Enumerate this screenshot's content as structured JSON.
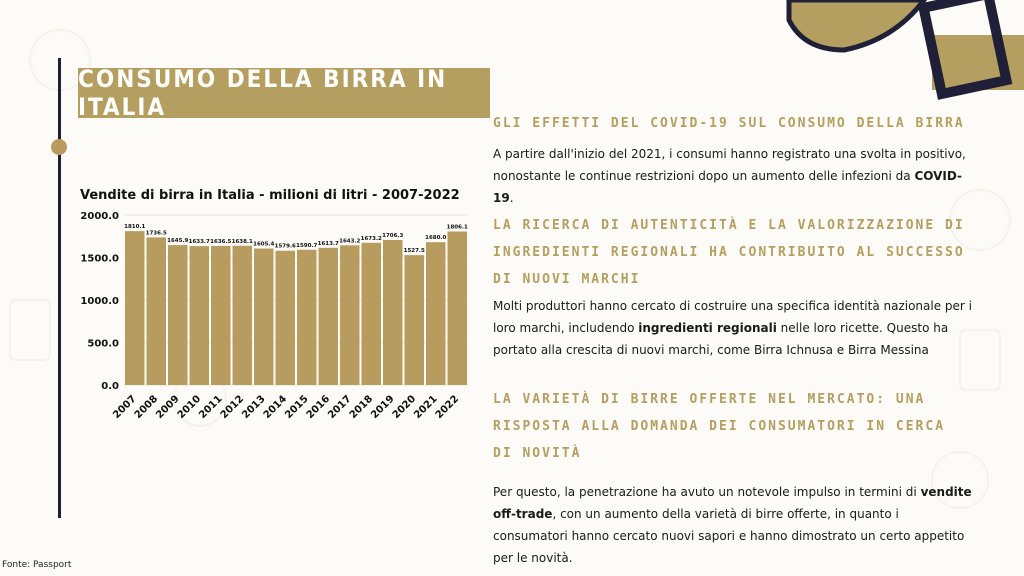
{
  "page": {
    "title": "CONSUMO DELLA BIRRA IN ITALIA",
    "source": "Fonte: Passport"
  },
  "colors": {
    "gold": "#b49f61",
    "navy": "#1f1f38",
    "bar": "#b89b5e"
  },
  "sections": [
    {
      "heading": "GLI EFFETTI DEL COVID-19 SUL CONSUMO DELLA BIRRA",
      "body": [
        {
          "text": "A partire dall'inizio del 2021, i consumi hanno registrato una svolta in positivo, nonostante le continue restrizioni dopo un aumento delle infezioni da "
        },
        {
          "text": "COVID-19",
          "bold": true
        },
        {
          "text": "."
        }
      ]
    },
    {
      "heading": "LA RICERCA DI AUTENTICITÀ E LA VALORIZZAZIONE DI INGREDIENTI REGIONALI HA CONTRIBUITO AL SUCCESSO DI NUOVI MARCHI",
      "body": [
        {
          "text": "Molti produttori hanno cercato di costruire una specifica identità nazionale per i loro marchi, includendo "
        },
        {
          "text": "ingredienti regionali",
          "bold": true
        },
        {
          "text": " nelle loro ricette. Questo ha portato alla crescita di nuovi marchi, come Birra Ichnusa e Birra Messina"
        }
      ]
    },
    {
      "heading": "LA VARIETÀ DI BIRRE OFFERTE NEL MERCATO: UNA RISPOSTA ALLA DOMANDA DEI CONSUMATORI IN CERCA DI NOVITÀ",
      "body": [
        {
          "text": "Per questo, la penetrazione ha avuto un notevole impulso in termini di "
        },
        {
          "text": "vendite off-trade",
          "bold": true
        },
        {
          "text": ", con un aumento della varietà di birre offerte, in quanto i consumatori hanno cercato nuovi sapori e hanno dimostrato un certo appetito per le novità."
        }
      ]
    }
  ],
  "chart_data": {
    "type": "bar",
    "title": "Vendite di birra in Italia - milioni di litri - 2007-2022",
    "categories": [
      "2007",
      "2008",
      "2009",
      "2010",
      "2011",
      "2012",
      "2013",
      "2014",
      "2015",
      "2016",
      "2017",
      "2018",
      "2019",
      "2020",
      "2021",
      "2022"
    ],
    "values": [
      1810.1,
      1736.5,
      1645.9,
      1633.7,
      1636.5,
      1638.1,
      1605.4,
      1579.6,
      1590.7,
      1613.7,
      1643.2,
      1673.2,
      1706.3,
      1527.5,
      1680.0,
      1806.1
    ],
    "value_labels": [
      "1810.1",
      "1736.5",
      "1645.9",
      "1633.7",
      "1636.5",
      "1638.1",
      "1605.4",
      "1579.6",
      "1590.7",
      "1613.7",
      "1643.2",
      "1673.2",
      "1706.3",
      "1527.5",
      "1680.0",
      "1806.1"
    ],
    "yticks": [
      "0.0",
      "500.0",
      "1000.0",
      "1500.0",
      "2000.0"
    ],
    "ytick_values": [
      0,
      500,
      1000,
      1500,
      2000
    ],
    "ylim": [
      0,
      2000
    ],
    "grid": true
  }
}
